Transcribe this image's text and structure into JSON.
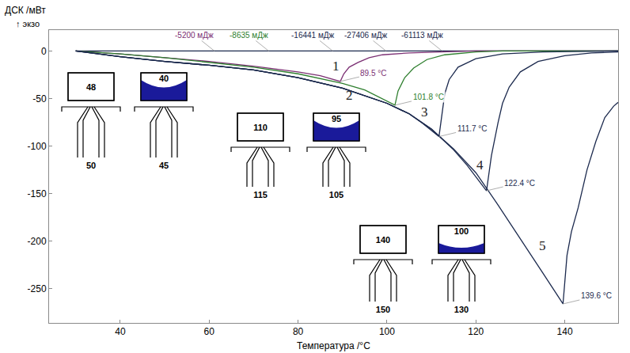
{
  "chart_data": {
    "type": "line",
    "xlabel": "Температура /°C",
    "ylabel": "ДСК /мВт",
    "ylabel_note": "↑ экзо",
    "xlim": [
      24,
      152
    ],
    "ylim": [
      -286,
      22
    ],
    "xticks": [
      40,
      60,
      80,
      100,
      120,
      140
    ],
    "yticks": [
      -250,
      -200,
      -150,
      -100,
      -50,
      0
    ],
    "grid": false,
    "series": [
      {
        "color": "#1c2a4e",
        "x": [
          30,
          152
        ],
        "values": [
          0,
          0
        ]
      },
      {
        "name": "1",
        "color": "#7b2f73",
        "label_at": [
          88.5,
          -16
        ],
        "peak_label": "89.5 °C",
        "energy_label": "-5200 мДж",
        "energy_at": [
          61.2,
          0
        ],
        "x": [
          30,
          40,
          50,
          60,
          70,
          80,
          85,
          89.5,
          90.3,
          91.5,
          93.5,
          96,
          99,
          105,
          112,
          120,
          152
        ],
        "values": [
          0,
          -3,
          -7,
          -11,
          -16,
          -22,
          -26,
          -32,
          -24,
          -17,
          -12,
          -7,
          -4,
          -2,
          -1,
          0,
          0
        ]
      },
      {
        "name": "2",
        "color": "#2f7f2f",
        "label_at": [
          91.5,
          -47
        ],
        "peak_label": "101.8 °C",
        "energy_label": "-8635 мДж",
        "energy_at": [
          73.4,
          0
        ],
        "x": [
          30,
          40,
          50,
          60,
          70,
          80,
          90,
          95,
          101.8,
          102.5,
          104,
          106,
          109,
          113,
          120,
          126,
          152
        ],
        "values": [
          0,
          -3,
          -7,
          -12,
          -17,
          -24,
          -34,
          -41,
          -57,
          -42,
          -28,
          -18,
          -9,
          -4,
          -1,
          0,
          0
        ]
      },
      {
        "name": "3",
        "color": "#1c2a4e",
        "label_at": [
          108.5,
          -64
        ],
        "peak_label": "111.7 °C",
        "energy_label": "-16441 мДж",
        "energy_at": [
          87.8,
          0
        ],
        "x": [
          30,
          40,
          50,
          60,
          70,
          80,
          90,
          100,
          105,
          108,
          111.7,
          112.3,
          113,
          114,
          116,
          120,
          126,
          135,
          152
        ],
        "values": [
          0,
          -6,
          -11,
          -15,
          -20,
          -28,
          -39,
          -55,
          -66,
          -76,
          -90,
          -70,
          -45,
          -30,
          -17,
          -8,
          -3,
          -1,
          0
        ]
      },
      {
        "name": "4",
        "color": "#1c2a4e",
        "label_at": [
          121,
          -120
        ],
        "peak_label": "122.4 °C",
        "energy_label": "-27406 мДж",
        "energy_at": [
          99.8,
          0
        ],
        "x": [
          30,
          40,
          50,
          60,
          70,
          80,
          90,
          100,
          105,
          110,
          115,
          118,
          122.4,
          123.5,
          125,
          126,
          127.5,
          130,
          134,
          140,
          146,
          152
        ],
        "values": [
          0,
          -6,
          -11,
          -15,
          -20,
          -28,
          -39,
          -55,
          -66,
          -82,
          -104,
          -120,
          -147,
          -110,
          -75,
          -55,
          -38,
          -22,
          -11,
          -5,
          -2,
          -1
        ]
      },
      {
        "name": "5",
        "color": "#1c2a4e",
        "label_at": [
          135,
          -205
        ],
        "peak_label": "139.6 °C",
        "energy_label": "-61113 мДж",
        "energy_at": [
          112.4,
          0
        ],
        "x": [
          30,
          40,
          50,
          60,
          70,
          80,
          90,
          100,
          105,
          110,
          115,
          120,
          125,
          130,
          135,
          139.6,
          140.5,
          141.5,
          143,
          145,
          147,
          149,
          151,
          152
        ],
        "values": [
          0,
          -6,
          -11,
          -15,
          -20,
          -28,
          -39,
          -55,
          -66,
          -82,
          -103,
          -128,
          -162,
          -198,
          -233,
          -266,
          -215,
          -190,
          -165,
          -125,
          -95,
          -70,
          -58,
          -54
        ]
      }
    ],
    "icons": [
      {
        "top": "48",
        "bottom": "50"
      },
      {
        "top": "40",
        "bottom": "45"
      },
      {
        "top": "110",
        "bottom": "115"
      },
      {
        "top": "95",
        "bottom": "105"
      },
      {
        "top": "140",
        "bottom": "150"
      },
      {
        "top": "100",
        "bottom": "130"
      }
    ]
  }
}
